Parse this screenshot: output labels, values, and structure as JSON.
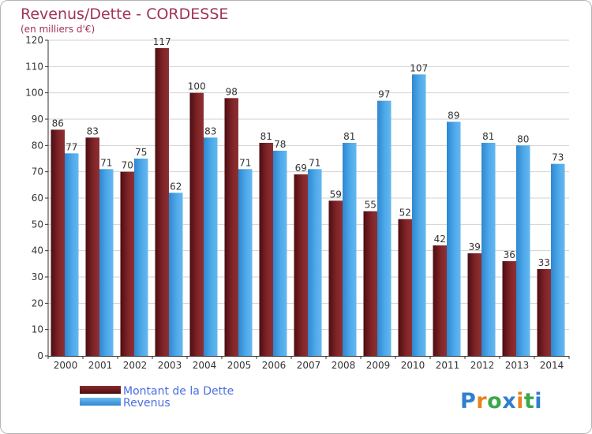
{
  "chart_data": {
    "type": "bar",
    "title": "Revenus/Dette - CORDESSE",
    "subtitle": "(en milliers d'€)",
    "xlabel": "",
    "ylabel": "",
    "ylim": [
      0,
      120
    ],
    "yticks": [
      0,
      10,
      20,
      30,
      40,
      50,
      60,
      70,
      80,
      90,
      100,
      110,
      120
    ],
    "grid": true,
    "legend_position": "bottom-left",
    "categories": [
      "2000",
      "2001",
      "2002",
      "2003",
      "2004",
      "2005",
      "2006",
      "2007",
      "2008",
      "2009",
      "2010",
      "2011",
      "2012",
      "2013",
      "2014"
    ],
    "series": [
      {
        "name": "Montant de la Dette",
        "color": "#7a1e22",
        "values": [
          86,
          83,
          70,
          117,
          100,
          98,
          81,
          69,
          59,
          55,
          52,
          42,
          39,
          36,
          33
        ]
      },
      {
        "name": "Revenus",
        "color": "#4aa6e6",
        "values": [
          77,
          71,
          75,
          62,
          83,
          71,
          78,
          71,
          81,
          97,
          107,
          89,
          81,
          80,
          73
        ]
      }
    ]
  },
  "logo": {
    "text": "Proxiti",
    "letter_colors": [
      "#2f7fd0",
      "#e8821e",
      "#3aa84a",
      "#2f7fd0",
      "#e8821e",
      "#3aa84a",
      "#2f7fd0"
    ]
  }
}
